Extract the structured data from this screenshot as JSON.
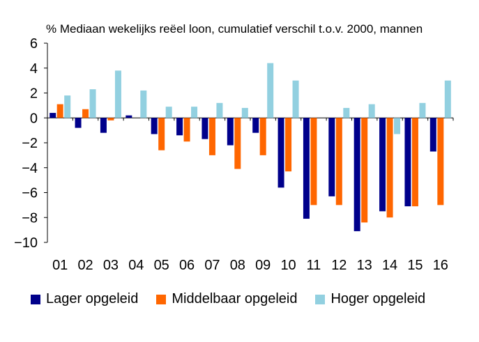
{
  "chart_data": {
    "type": "bar",
    "title": "% Mediaan wekelijks reëel  loon, cumulatief verschil t.o.v. 2000, mannen",
    "xlabel": "",
    "ylabel": "",
    "categories": [
      "01",
      "02",
      "03",
      "04",
      "05",
      "06",
      "07",
      "08",
      "09",
      "10",
      "11",
      "12",
      "13",
      "14",
      "15",
      "16"
    ],
    "yticks": [
      "6",
      "4",
      "2",
      "0",
      "−2",
      "−4",
      "−6",
      "−8",
      "−10"
    ],
    "ytick_values": [
      6,
      4,
      2,
      0,
      -2,
      -4,
      -6,
      -8,
      -10
    ],
    "ylim": [
      -10,
      6
    ],
    "grid": false,
    "legend_position": "bottom",
    "series": [
      {
        "name": "Lager opgeleid",
        "color": "#00008B",
        "values": [
          0.4,
          -0.8,
          -1.2,
          0.2,
          -1.3,
          -1.4,
          -1.7,
          -2.2,
          -1.2,
          -5.6,
          -8.1,
          -6.3,
          -9.1,
          -7.5,
          -7.1,
          -2.7
        ]
      },
      {
        "name": "Middelbaar opgeleid",
        "color": "#FF6600",
        "values": [
          1.1,
          0.7,
          -0.2,
          0.0,
          -2.6,
          -1.9,
          -3.0,
          -4.1,
          -3.0,
          -4.3,
          -7.0,
          -7.0,
          -8.4,
          -8.0,
          -7.1,
          -7.0
        ]
      },
      {
        "name": "Hoger opgeleid",
        "color": "#92D0E0",
        "values": [
          1.8,
          2.3,
          3.8,
          2.2,
          0.9,
          0.9,
          1.2,
          0.8,
          4.4,
          3.0,
          0.0,
          0.8,
          1.1,
          -1.3,
          1.2,
          3.0
        ]
      }
    ]
  }
}
